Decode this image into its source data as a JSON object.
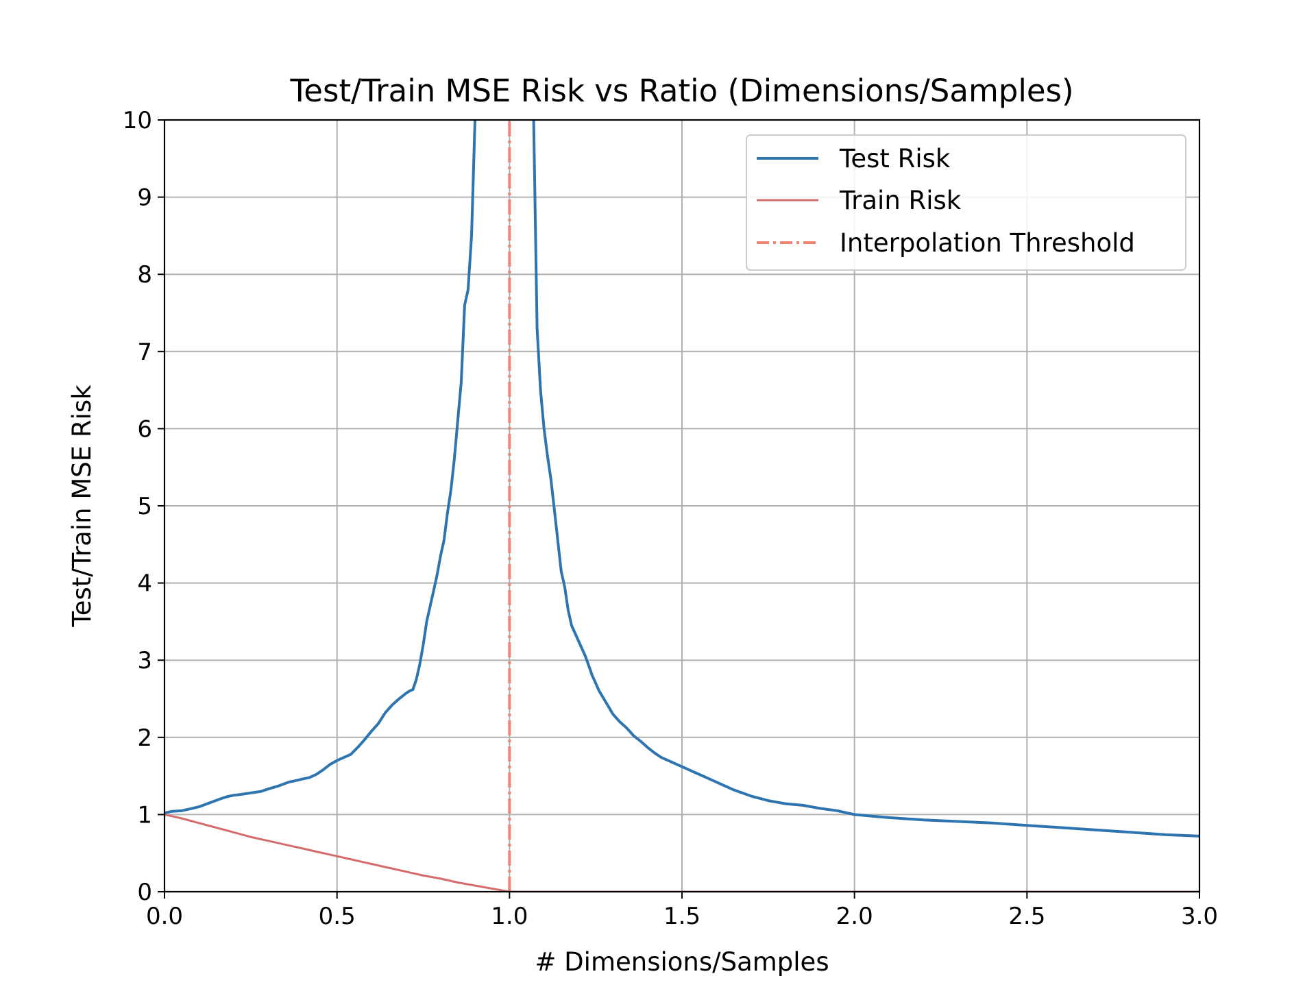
{
  "chart_data": {
    "type": "line",
    "title": "Test/Train MSE Risk vs Ratio (Dimensions/Samples)",
    "xlabel": "# Dimensions/Samples",
    "ylabel": "Test/Train MSE Risk",
    "xlim": [
      0.0,
      3.0
    ],
    "ylim": [
      0,
      10
    ],
    "xticks": [
      "0.0",
      "0.5",
      "1.0",
      "1.5",
      "2.0",
      "2.5",
      "3.0"
    ],
    "yticks": [
      "0",
      "1",
      "2",
      "3",
      "4",
      "5",
      "6",
      "7",
      "8",
      "9",
      "10"
    ],
    "grid": true,
    "legend_position": "top-right",
    "series": [
      {
        "name": "Test Risk",
        "color": "#2e75b0",
        "style": "solid",
        "x": [
          0.0,
          0.02,
          0.05,
          0.08,
          0.1,
          0.13,
          0.16,
          0.18,
          0.2,
          0.22,
          0.25,
          0.28,
          0.3,
          0.33,
          0.36,
          0.38,
          0.4,
          0.42,
          0.44,
          0.46,
          0.48,
          0.5,
          0.52,
          0.54,
          0.56,
          0.58,
          0.6,
          0.62,
          0.64,
          0.66,
          0.68,
          0.7,
          0.71,
          0.72,
          0.73,
          0.74,
          0.75,
          0.76,
          0.78,
          0.79,
          0.8,
          0.81,
          0.82,
          0.83,
          0.84,
          0.85,
          0.86,
          0.87,
          0.88,
          0.89,
          0.9,
          0.91,
          0.92,
          0.93,
          0.94,
          0.95,
          0.96,
          0.97
        ],
        "y": [
          1.02,
          1.04,
          1.05,
          1.08,
          1.1,
          1.15,
          1.2,
          1.23,
          1.25,
          1.26,
          1.28,
          1.3,
          1.33,
          1.37,
          1.42,
          1.44,
          1.46,
          1.48,
          1.52,
          1.58,
          1.65,
          1.7,
          1.74,
          1.78,
          1.87,
          1.97,
          2.08,
          2.18,
          2.32,
          2.42,
          2.5,
          2.57,
          2.6,
          2.62,
          2.75,
          2.95,
          3.2,
          3.5,
          3.9,
          4.1,
          4.35,
          4.55,
          4.9,
          5.2,
          5.6,
          6.1,
          6.6,
          7.6,
          7.8,
          8.5,
          10.0,
          11.0,
          12.0,
          12.0,
          12.0,
          12.0,
          12.0,
          12.0
        ],
        "x2": [
          1.0,
          1.06,
          1.07,
          1.08,
          1.09,
          1.1,
          1.11,
          1.12,
          1.13,
          1.15,
          1.16,
          1.17,
          1.18,
          1.2,
          1.22,
          1.24,
          1.26,
          1.28,
          1.3,
          1.32,
          1.34,
          1.36,
          1.38,
          1.4,
          1.42,
          1.44,
          1.46,
          1.5,
          1.55,
          1.6,
          1.65,
          1.7,
          1.75,
          1.8,
          1.85,
          1.9,
          1.95,
          2.0,
          2.05,
          2.1,
          2.2,
          2.3,
          2.4,
          2.5,
          2.6,
          2.7,
          2.8,
          2.9,
          3.0
        ],
        "y2": [
          12.0,
          12.0,
          10.0,
          7.3,
          6.5,
          6.0,
          5.65,
          5.35,
          4.95,
          4.15,
          3.95,
          3.65,
          3.45,
          3.25,
          3.05,
          2.8,
          2.6,
          2.45,
          2.3,
          2.2,
          2.12,
          2.02,
          1.95,
          1.87,
          1.8,
          1.74,
          1.7,
          1.62,
          1.52,
          1.42,
          1.32,
          1.24,
          1.18,
          1.14,
          1.12,
          1.08,
          1.05,
          1.0,
          0.98,
          0.96,
          0.93,
          0.91,
          0.89,
          0.86,
          0.83,
          0.8,
          0.77,
          0.74,
          0.72
        ]
      },
      {
        "name": "Train Risk",
        "color": "#d56b6b",
        "style": "solid",
        "x": [
          0.0,
          0.05,
          0.1,
          0.15,
          0.2,
          0.25,
          0.3,
          0.35,
          0.4,
          0.45,
          0.5,
          0.55,
          0.6,
          0.65,
          0.7,
          0.75,
          0.8,
          0.85,
          0.9,
          0.95,
          1.0,
          1.5,
          2.0,
          2.5,
          3.0
        ],
        "y": [
          1.0,
          0.95,
          0.89,
          0.83,
          0.77,
          0.71,
          0.66,
          0.61,
          0.56,
          0.51,
          0.46,
          0.41,
          0.36,
          0.31,
          0.26,
          0.21,
          0.17,
          0.12,
          0.08,
          0.04,
          0.0,
          0.0,
          0.0,
          0.0,
          0.0
        ]
      },
      {
        "name": "Interpolation Threshold",
        "color": "#ef8474",
        "style": "dashdot",
        "x": [
          1.0,
          1.0
        ],
        "y": [
          0,
          10
        ]
      }
    ]
  }
}
